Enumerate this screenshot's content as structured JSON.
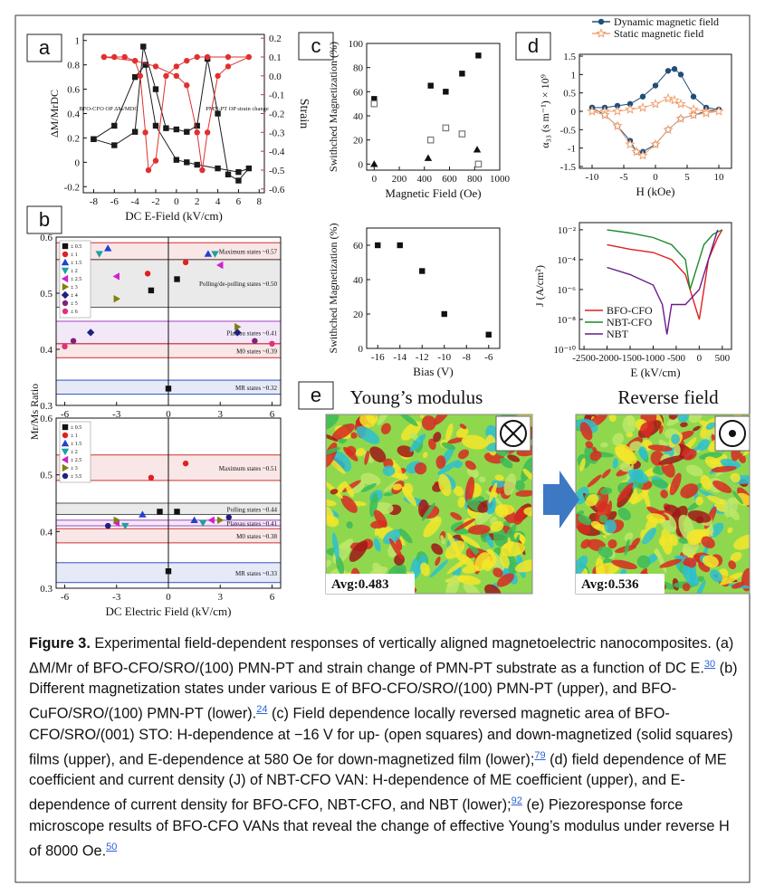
{
  "panels": [
    "a",
    "b",
    "c",
    "d",
    "e"
  ],
  "images": [
    {
      "title": "Young’s modulus",
      "avg": "Avg:0.483"
    },
    {
      "title": "Reverse field",
      "avg": "Avg:0.536"
    }
  ],
  "caption": {
    "label": "Figure 3.",
    "parts": [
      {
        "text": "Experimental field-dependent responses of vertically aligned magnetoelectric nanocomposites. (a) ΔM/Mr of BFO-CFO/SRO/(100) PMN-PT and strain change of PMN-PT substrate as a function of DC E.",
        "ref": "30"
      },
      {
        "text": "(b) Different magnetization states under various E of BFO-CFO/SRO/(100) PMN-PT (upper), and BFO-CuFO/SRO/(100) PMN-PT (lower).",
        "ref": "24"
      },
      {
        "text": "(c) Field dependence locally reversed magnetic area of BFO-CFO/SRO/(001) STO: H-dependence at −16 V for up- (open squares) and down-magnetized (solid squares) films (upper), and E-dependence at 580 Oe for down-magnetized film (lower);",
        "ref": "79"
      },
      {
        "text": "(d) field dependence of ME coefficient and current density (J) of NBT-CFO VAN: H-dependence of ME coefficient (upper), and E-dependence of current density for BFO-CFO, NBT-CFO, and NBT (lower);",
        "ref": "92"
      },
      {
        "text": "(e) Piezoresponse force microscope results of BFO-CFO VANs that reveal the change of effective Young’s modulus under reverse H of 8000 Oe.",
        "ref": "50"
      }
    ]
  },
  "chart_data": [
    {
      "type": "line",
      "xlabel": "DC E-Field (kV/cm)",
      "ylabel": "ΔM/MrDC",
      "y2label": "Strain",
      "xlim": [
        -9,
        8.5
      ],
      "xticks": [
        -8,
        -6,
        -4,
        -2,
        0,
        2,
        4,
        6,
        8
      ],
      "ylim": [
        -0.25,
        1.05
      ],
      "yticks": [
        -0.2,
        0,
        0.2,
        0.4,
        0.6,
        0.8,
        1
      ],
      "y2lim": [
        -0.62,
        0.22
      ],
      "y2ticks": [
        -0.6,
        -0.5,
        -0.4,
        -0.3,
        -0.2,
        -0.1,
        {
          "value": 0,
          "label": "0.0"
        },
        0.1,
        0.2
      ],
      "annotations": [
        "BFO-CFO OP ΔM/MDC",
        "PMN-PT OP strain change"
      ],
      "series": [
        {
          "color": "#1a1a1a",
          "marker": "square",
          "x": [
            -8,
            -6,
            -4,
            -3.2,
            -2,
            -1,
            0,
            1,
            2,
            3,
            4,
            5,
            6,
            7,
            6,
            4,
            2,
            1,
            0,
            -2,
            -3,
            -4,
            -6,
            -8
          ],
          "values": [
            0.19,
            0.14,
            0.25,
            0.95,
            0.6,
            0.28,
            0.27,
            0.25,
            0.3,
            0.85,
            0.4,
            -0.1,
            -0.15,
            -0.05,
            -0.08,
            -0.05,
            -0.02,
            0,
            0.02,
            0.3,
            0.8,
            0.7,
            0.3,
            0.19
          ]
        },
        {
          "color": "#e03030",
          "marker": "circle",
          "axis": "y2",
          "x": [
            -7,
            -6,
            -5,
            -4,
            -3.5,
            -3,
            -2.7,
            -2,
            -1,
            0,
            1,
            2,
            3,
            5,
            7,
            5,
            4,
            3,
            2.5,
            2,
            1,
            0,
            -2,
            -4,
            -7
          ],
          "values": [
            0.1,
            0.1,
            0.1,
            0.08,
            0,
            -0.3,
            -0.5,
            -0.45,
            0,
            0.05,
            0.08,
            0.1,
            0.1,
            0.1,
            0.1,
            0.05,
            0,
            -0.3,
            -0.5,
            -0.3,
            -0.05,
            0,
            0.05,
            0.08,
            0.1
          ]
        }
      ]
    },
    {
      "type": "scatter",
      "ylabel": "Mr/Ms Ratio",
      "xlim": [
        -6.5,
        6.5
      ],
      "xticks": [
        -6,
        -3,
        0,
        3,
        6
      ],
      "ylim": [
        0.3,
        0.6
      ],
      "yticks": [
        0.3,
        0.4,
        0.5,
        0.6
      ],
      "legend": "upper left",
      "bands": [
        {
          "label": "Maximum states ~0.57",
          "range": [
            0.56,
            0.59
          ],
          "color": "#d03030"
        },
        {
          "label": "Polling/de-polling states ~0.50",
          "range": [
            0.475,
            0.56
          ],
          "color": "#555555"
        },
        {
          "label": "Plateau states ~0.41",
          "range": [
            0.41,
            0.45
          ],
          "color": "#a040c0"
        },
        {
          "label": "M0 states ~0.39",
          "range": [
            0.385,
            0.41
          ],
          "color": "#d03030"
        },
        {
          "label": "MR states ~0.32",
          "range": [
            0.32,
            0.345
          ],
          "color": "#3050c0"
        }
      ],
      "series": [
        {
          "name": "± 0.5",
          "color": "#111111",
          "marker": "square",
          "x": [
            -1,
            0.5,
            0
          ],
          "values": [
            0.505,
            0.525,
            0.33
          ]
        },
        {
          "name": "± 1",
          "color": "#e02020",
          "marker": "circle",
          "x": [
            -1.2,
            1
          ],
          "values": [
            0.535,
            0.555
          ]
        },
        {
          "name": "± 1.5",
          "color": "#2040d0",
          "marker": "triangle",
          "x": [
            -3.5,
            2.3
          ],
          "values": [
            0.58,
            0.57
          ]
        },
        {
          "name": "± 2",
          "color": "#20a0a0",
          "marker": "down-triangle",
          "x": [
            -4,
            2.7
          ],
          "values": [
            0.57,
            0.57
          ]
        },
        {
          "name": "± 2.5",
          "color": "#d020d0",
          "marker": "left-triangle",
          "x": [
            -3,
            3
          ],
          "values": [
            0.53,
            0.55
          ]
        },
        {
          "name": "± 3",
          "color": "#808010",
          "marker": "right-triangle",
          "x": [
            -3,
            4
          ],
          "values": [
            0.49,
            0.44
          ]
        },
        {
          "name": "± 4",
          "color": "#202080",
          "marker": "diamond",
          "x": [
            -4.5,
            4
          ],
          "values": [
            0.43,
            0.43
          ]
        },
        {
          "name": "± 5",
          "color": "#802080",
          "marker": "circle",
          "x": [
            -5.5,
            5
          ],
          "values": [
            0.415,
            0.415
          ]
        },
        {
          "name": "± 6",
          "color": "#e0307a",
          "marker": "circle",
          "x": [
            -6,
            6
          ],
          "values": [
            0.405,
            0.41
          ]
        }
      ]
    },
    {
      "type": "scatter",
      "xlabel": "DC Electric Field (kV/cm)",
      "xlim": [
        -6.5,
        6.5
      ],
      "xticks": [
        -6,
        -3,
        0,
        3,
        6
      ],
      "ylim": [
        0.3,
        0.6
      ],
      "yticks": [
        0.3,
        0.4,
        0.5,
        0.6
      ],
      "legend": "upper left",
      "bands": [
        {
          "label": "Maximum states ~0.51",
          "range": [
            0.49,
            0.535
          ],
          "color": "#d03030"
        },
        {
          "label": "Polling states ~0.44",
          "range": [
            0.43,
            0.45
          ],
          "color": "#555555"
        },
        {
          "label": "Plateau states ~0.41",
          "range": [
            0.41,
            0.42
          ],
          "color": "#a040c0"
        },
        {
          "label": "M0 states ~0.38",
          "range": [
            0.38,
            0.405
          ],
          "color": "#d03030"
        },
        {
          "label": "MR states ~0.33",
          "range": [
            0.31,
            0.345
          ],
          "color": "#3050c0"
        }
      ],
      "series": [
        {
          "name": "± 0.5",
          "color": "#111111",
          "marker": "square",
          "x": [
            -0.5,
            0.5,
            0
          ],
          "values": [
            0.435,
            0.435,
            0.33
          ]
        },
        {
          "name": "± 1",
          "color": "#e02020",
          "marker": "circle",
          "x": [
            -1,
            1
          ],
          "values": [
            0.495,
            0.52
          ]
        },
        {
          "name": "± 1.5",
          "color": "#2040d0",
          "marker": "triangle",
          "x": [
            -1.5,
            1.5
          ],
          "values": [
            0.43,
            0.42
          ]
        },
        {
          "name": "± 2",
          "color": "#20a0a0",
          "marker": "down-triangle",
          "x": [
            -2.5,
            2
          ],
          "values": [
            0.41,
            0.415
          ]
        },
        {
          "name": "± 2.5",
          "color": "#d020d0",
          "marker": "left-triangle",
          "x": [
            -3,
            2.5
          ],
          "values": [
            0.415,
            0.42
          ]
        },
        {
          "name": "± 3",
          "color": "#808010",
          "marker": "right-triangle",
          "x": [
            -3,
            3
          ],
          "values": [
            0.42,
            0.42
          ]
        },
        {
          "name": "± 3.5",
          "color": "#202080",
          "marker": "circle",
          "x": [
            -3.5,
            3.5
          ],
          "values": [
            0.41,
            0.425
          ]
        }
      ]
    },
    {
      "type": "scatter",
      "xlabel": "Magnetic Field (Oe)",
      "ylabel": "Swithched Magnetization (%)",
      "xlim": [
        -60,
        1000
      ],
      "xticks": [
        0,
        200,
        400,
        600,
        800,
        1000
      ],
      "ylim": [
        -5,
        100
      ],
      "yticks": [
        0,
        20,
        40,
        60,
        80,
        100
      ],
      "series": [
        {
          "color": "#111111",
          "marker": "square",
          "x": [
            0,
            450,
            570,
            700,
            830
          ],
          "values": [
            54,
            65,
            60,
            75,
            90
          ]
        },
        {
          "color": "#777777",
          "marker": "open-square",
          "x": [
            0,
            450,
            570,
            700,
            830
          ],
          "values": [
            50,
            20,
            30,
            25,
            0
          ]
        },
        {
          "color": "#111111",
          "marker": "triangle",
          "x": [
            0,
            430,
            820
          ],
          "values": [
            0,
            5,
            12
          ]
        }
      ]
    },
    {
      "type": "scatter",
      "xlabel": "Bias (V)",
      "ylabel": "Swithched Magnetization (%)",
      "xlim": [
        -17,
        -5
      ],
      "xticks": [
        -16,
        -14,
        -12,
        -10,
        -8,
        -6
      ],
      "ylim": [
        0,
        70
      ],
      "yticks": [
        0,
        20,
        40,
        60
      ],
      "series": [
        {
          "color": "#111111",
          "marker": "square",
          "x": [
            -16,
            -14,
            -12,
            -10,
            -6
          ],
          "values": [
            60,
            60,
            45,
            20,
            8
          ]
        }
      ]
    },
    {
      "type": "line",
      "xlabel": "H (kOe)",
      "ylabel": "α₃₃ (s m⁻¹) × 10⁹",
      "legend": "top",
      "xlim": [
        -12,
        12
      ],
      "xticks": [
        -10,
        -5,
        0,
        5,
        10
      ],
      "ylim": [
        -1.55,
        1.55
      ],
      "yticks": [
        -1.5,
        -1,
        -0.5,
        0,
        0.5,
        1,
        1.5
      ],
      "series": [
        {
          "name": "Dynamic magnetic field",
          "color": "#1f4e79",
          "marker": "circle",
          "x": [
            -10,
            -8,
            -6,
            -4,
            -2,
            0,
            2,
            3,
            4,
            6,
            8,
            10,
            8,
            6,
            4,
            2,
            0,
            -2,
            -3,
            -4,
            -6,
            -8,
            -10
          ],
          "values": [
            0.1,
            0.1,
            0.15,
            0.2,
            0.4,
            0.7,
            1.1,
            1.15,
            1.0,
            0.4,
            0.1,
            0.05,
            0,
            -0.1,
            -0.2,
            -0.5,
            -0.9,
            -1.1,
            -1.1,
            -0.8,
            -0.4,
            -0.1,
            0.1
          ]
        },
        {
          "name": "Static magnetic field",
          "color": "#f0a070",
          "marker": "star",
          "x": [
            -10,
            -8,
            -6,
            -4,
            -2,
            0,
            2,
            3,
            4,
            6,
            8,
            10,
            8,
            6,
            4,
            2,
            0,
            -2,
            -3,
            -4,
            -6,
            -8,
            -10
          ],
          "values": [
            0,
            0,
            0,
            0.05,
            0.1,
            0.2,
            0.35,
            0.3,
            0.2,
            0.05,
            0,
            0,
            -0.05,
            -0.1,
            -0.2,
            -0.5,
            -0.9,
            -1.2,
            -1.1,
            -0.9,
            -0.4,
            -0.1,
            0
          ]
        }
      ]
    },
    {
      "type": "line",
      "xlabel": "E (kV/cm)",
      "ylabel": "J (A/cm²)",
      "yscale": "log",
      "legend": "lower left",
      "xlim": [
        -2600,
        700
      ],
      "xticks": [
        -2500,
        -2000,
        -1500,
        -1000,
        -500,
        0,
        500
      ],
      "ylim": [
        1e-10,
        0.03
      ],
      "yticks": [
        {
          "value": 1e-10,
          "label": "10⁻¹⁰"
        },
        {
          "value": 1e-08,
          "label": "10⁻⁸"
        },
        {
          "value": 1e-06,
          "label": "10⁻⁶"
        },
        {
          "value": 0.0001,
          "label": "10⁻⁴"
        },
        {
          "value": 0.01,
          "label": "10⁻²"
        }
      ],
      "series": [
        {
          "name": "BFO-CFO",
          "color": "#e02020",
          "x": [
            -2000,
            -1500,
            -1000,
            -600,
            -300,
            -100,
            0,
            100,
            200,
            400,
            500
          ],
          "values": [
            0.001,
            0.0005,
            0.0003,
            0.0001,
            1e-05,
            1e-07,
            1e-08,
            1e-06,
            0.0001,
            0.003,
            0.01
          ]
        },
        {
          "name": "NBT-CFO",
          "color": "#1a8a2a",
          "x": [
            -2000,
            -1500,
            -1000,
            -600,
            -300,
            -200,
            -100,
            0,
            100,
            300,
            500
          ],
          "values": [
            0.01,
            0.006,
            0.003,
            0.001,
            0.0001,
            1e-06,
            1e-05,
            0.0001,
            0.001,
            0.005,
            0.01
          ]
        },
        {
          "name": "NBT",
          "color": "#6a1a8a",
          "x": [
            -2000,
            -1500,
            -1000,
            -800,
            -700,
            -600,
            -300,
            0,
            200,
            400
          ],
          "values": [
            3e-05,
            1e-05,
            2e-06,
            1e-07,
            1e-09,
            1e-07,
            1e-07,
            1e-06,
            0.0001,
            0.01
          ]
        }
      ]
    }
  ]
}
